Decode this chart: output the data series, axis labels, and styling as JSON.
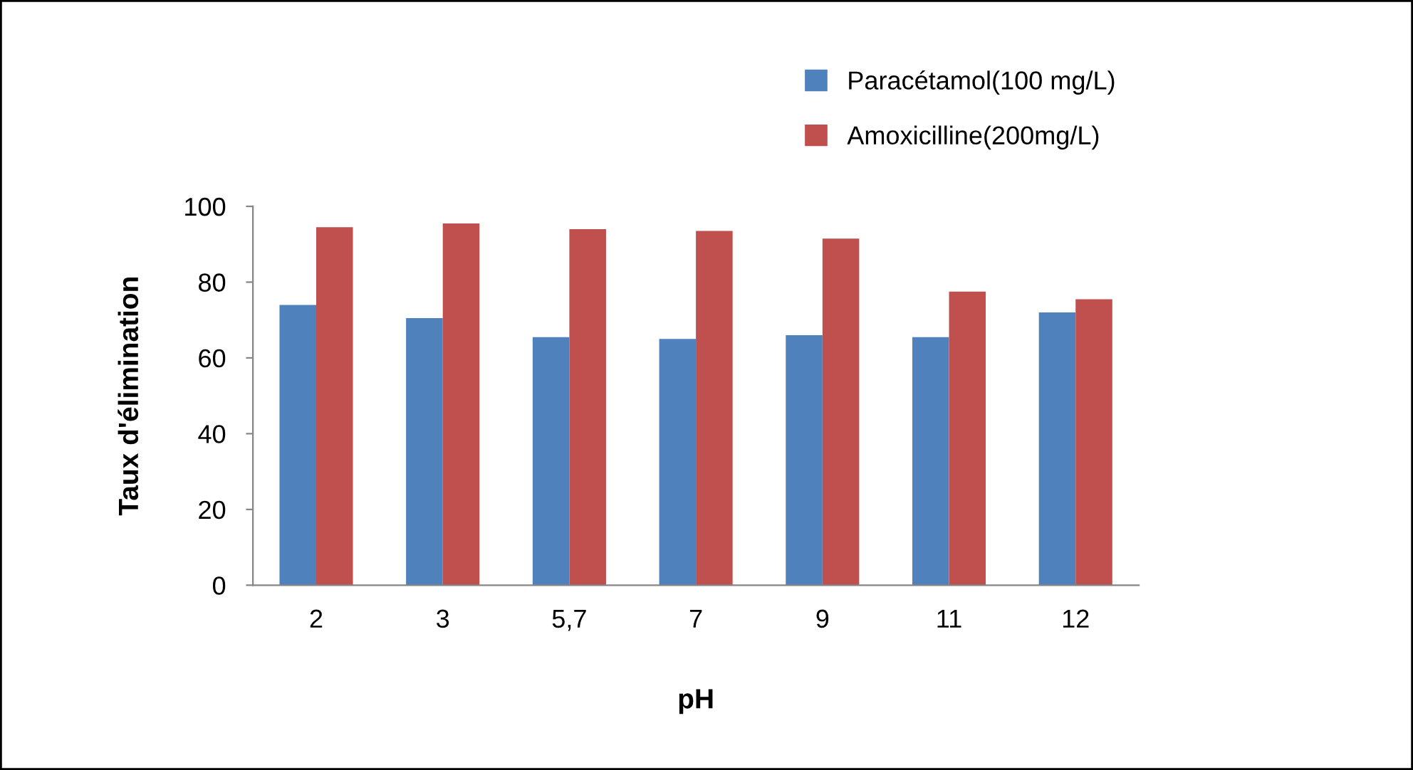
{
  "chart_data": {
    "type": "bar",
    "xlabel": "pH",
    "ylabel": "Taux d'élimination",
    "categories": [
      "2",
      "3",
      "5,7",
      "7",
      "9",
      "11",
      "12"
    ],
    "series": [
      {
        "name": "Paracétamol(100 mg/L)",
        "color": "#4f81bd",
        "values": [
          74,
          70.5,
          65.5,
          65,
          66,
          65.5,
          72
        ]
      },
      {
        "name": "Amoxicilline(200mg/L)",
        "color": "#c0504d",
        "values": [
          94.5,
          95.5,
          94,
          93.5,
          91.5,
          77.5,
          75.5
        ]
      }
    ],
    "ylim": [
      0,
      100
    ],
    "yticks": [
      0,
      20,
      40,
      60,
      80,
      100
    ],
    "grid": false,
    "legend": "top right"
  }
}
